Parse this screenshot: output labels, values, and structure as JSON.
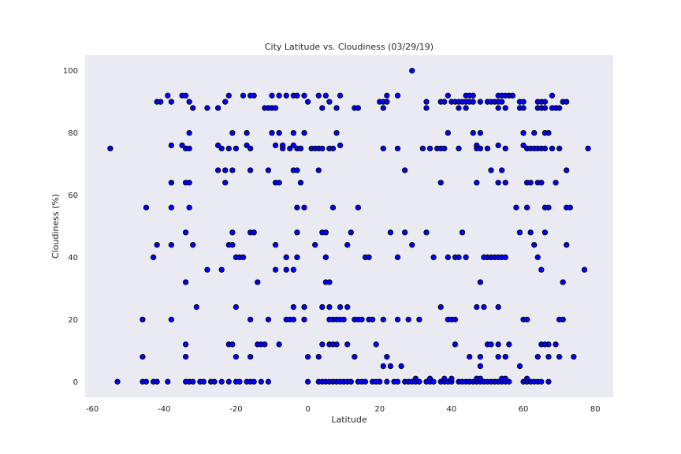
{
  "chart_data": {
    "type": "scatter",
    "title": "City Latitude vs. Cloudiness (03/29/19)",
    "xlabel": "Latitude",
    "ylabel": "Cloudiness (%)",
    "xlim": [
      -62,
      85
    ],
    "ylim": [
      -5,
      105
    ],
    "xticks": [
      -60,
      -40,
      -20,
      0,
      20,
      40,
      60,
      80
    ],
    "yticks": [
      0,
      20,
      40,
      60,
      80,
      100
    ],
    "grid": false,
    "background": "#eaeaf2",
    "marker_color": "#0000ff",
    "marker_edge": "#000000",
    "points": [
      [
        -55,
        75
      ],
      [
        -53,
        0
      ],
      [
        -46,
        20
      ],
      [
        -45,
        56
      ],
      [
        -46,
        8
      ],
      [
        -46,
        0
      ],
      [
        -45,
        0
      ],
      [
        -43,
        0
      ],
      [
        -42,
        0
      ],
      [
        -43,
        40
      ],
      [
        -42,
        44
      ],
      [
        -42,
        90
      ],
      [
        -41,
        90
      ],
      [
        -39,
        92
      ],
      [
        -38,
        90
      ],
      [
        -38,
        76
      ],
      [
        -38,
        64
      ],
      [
        -38,
        56
      ],
      [
        -38,
        44
      ],
      [
        -38,
        20
      ],
      [
        -39,
        0
      ],
      [
        -35,
        92
      ],
      [
        -34,
        92
      ],
      [
        -35,
        76
      ],
      [
        -34,
        75
      ],
      [
        -33,
        75
      ],
      [
        -33,
        80
      ],
      [
        -34,
        64
      ],
      [
        -33,
        64
      ],
      [
        -33,
        56
      ],
      [
        -34,
        48
      ],
      [
        -32,
        44
      ],
      [
        -34,
        32
      ],
      [
        -31,
        24
      ],
      [
        -34,
        12
      ],
      [
        -34,
        8
      ],
      [
        -34,
        0
      ],
      [
        -33,
        0
      ],
      [
        -32,
        0
      ],
      [
        -30,
        0
      ],
      [
        -29,
        0
      ],
      [
        -27,
        0
      ],
      [
        -33,
        90
      ],
      [
        -32,
        88
      ],
      [
        -28,
        88
      ],
      [
        -28,
        36
      ],
      [
        -25,
        88
      ],
      [
        -23,
        90
      ],
      [
        -22,
        92
      ],
      [
        -25,
        76
      ],
      [
        -24,
        75
      ],
      [
        -22,
        75
      ],
      [
        -25,
        68
      ],
      [
        -23,
        68
      ],
      [
        -21,
        68
      ],
      [
        -23,
        64
      ],
      [
        -21,
        80
      ],
      [
        -20,
        75
      ],
      [
        -24,
        36
      ],
      [
        -21,
        48
      ],
      [
        -22,
        44
      ],
      [
        -21,
        44
      ],
      [
        -20,
        40
      ],
      [
        -19,
        40
      ],
      [
        -22,
        12
      ],
      [
        -21,
        12
      ],
      [
        -20,
        24
      ],
      [
        -20,
        8
      ],
      [
        -26,
        0
      ],
      [
        -24,
        0
      ],
      [
        -22,
        0
      ],
      [
        -20,
        0
      ],
      [
        -19,
        0
      ],
      [
        -18,
        92
      ],
      [
        -16,
        92
      ],
      [
        -15,
        92
      ],
      [
        -17,
        80
      ],
      [
        -17,
        76
      ],
      [
        -16,
        75
      ],
      [
        -16,
        68
      ],
      [
        -18,
        40
      ],
      [
        -16,
        48
      ],
      [
        -15,
        48
      ],
      [
        -14,
        32
      ],
      [
        -14,
        12
      ],
      [
        -13,
        12
      ],
      [
        -12,
        12
      ],
      [
        -16,
        20
      ],
      [
        -16,
        8
      ],
      [
        -17,
        0
      ],
      [
        -16,
        0
      ],
      [
        -15,
        0
      ],
      [
        -13,
        0
      ],
      [
        -11,
        0
      ],
      [
        -12,
        88
      ],
      [
        -11,
        88
      ],
      [
        -10,
        88
      ],
      [
        -9,
        88
      ],
      [
        -10,
        92
      ],
      [
        -8,
        92
      ],
      [
        -6,
        92
      ],
      [
        -4,
        92
      ],
      [
        -3,
        92
      ],
      [
        -10,
        80
      ],
      [
        -8,
        80
      ],
      [
        -9,
        76
      ],
      [
        -7,
        76
      ],
      [
        -7,
        75
      ],
      [
        -11,
        68
      ],
      [
        -9,
        64
      ],
      [
        -8,
        64
      ],
      [
        -9,
        44
      ],
      [
        -6,
        40
      ],
      [
        -3,
        40
      ],
      [
        -9,
        36
      ],
      [
        -6,
        36
      ],
      [
        -4,
        36
      ],
      [
        -11,
        20
      ],
      [
        -6,
        20
      ],
      [
        -5,
        20
      ],
      [
        -4,
        20
      ],
      [
        -8,
        12
      ],
      [
        -4,
        24
      ],
      [
        -3,
        48
      ],
      [
        -5,
        75
      ],
      [
        -3,
        75
      ],
      [
        -4,
        76
      ],
      [
        -2,
        75
      ],
      [
        -3,
        68
      ],
      [
        -4,
        68
      ],
      [
        -2,
        64
      ],
      [
        -3,
        56
      ],
      [
        -4,
        80
      ],
      [
        -1,
        80
      ],
      [
        -2,
        75
      ],
      [
        -1,
        56
      ],
      [
        0,
        90
      ],
      [
        -1,
        92
      ],
      [
        -1,
        24
      ],
      [
        -1,
        20
      ],
      [
        0,
        8
      ],
      [
        0,
        0
      ],
      [
        1,
        75
      ],
      [
        2,
        75
      ],
      [
        3,
        75
      ],
      [
        4,
        75
      ],
      [
        6,
        75
      ],
      [
        7,
        75
      ],
      [
        3,
        92
      ],
      [
        5,
        92
      ],
      [
        6,
        90
      ],
      [
        4,
        88
      ],
      [
        8,
        88
      ],
      [
        9,
        92
      ],
      [
        8,
        80
      ],
      [
        9,
        76
      ],
      [
        3,
        68
      ],
      [
        7,
        56
      ],
      [
        2,
        44
      ],
      [
        4,
        48
      ],
      [
        5,
        48
      ],
      [
        5,
        40
      ],
      [
        5,
        32
      ],
      [
        6,
        32
      ],
      [
        4,
        24
      ],
      [
        6,
        24
      ],
      [
        9,
        24
      ],
      [
        7,
        20
      ],
      [
        6,
        20
      ],
      [
        8,
        20
      ],
      [
        4,
        12
      ],
      [
        6,
        12
      ],
      [
        7,
        12
      ],
      [
        8,
        12
      ],
      [
        3,
        8
      ],
      [
        3,
        0
      ],
      [
        4,
        0
      ],
      [
        5,
        0
      ],
      [
        6,
        0
      ],
      [
        7,
        0
      ],
      [
        8,
        0
      ],
      [
        9,
        0
      ],
      [
        10,
        0
      ],
      [
        11,
        0
      ],
      [
        12,
        0
      ],
      [
        9,
        20
      ],
      [
        10,
        20
      ],
      [
        11,
        24
      ],
      [
        11,
        44
      ],
      [
        11,
        12
      ],
      [
        13,
        88
      ],
      [
        14,
        88
      ],
      [
        12,
        48
      ],
      [
        14,
        56
      ],
      [
        13,
        20
      ],
      [
        14,
        20
      ],
      [
        15,
        20
      ],
      [
        13,
        8
      ],
      [
        14,
        0
      ],
      [
        15,
        0
      ],
      [
        16,
        0
      ],
      [
        16,
        40
      ],
      [
        17,
        40
      ],
      [
        17,
        20
      ],
      [
        18,
        20
      ],
      [
        19,
        12
      ],
      [
        18,
        0
      ],
      [
        19,
        0
      ],
      [
        20,
        90
      ],
      [
        21,
        90
      ],
      [
        22,
        90
      ],
      [
        22,
        92
      ],
      [
        21,
        88
      ],
      [
        25,
        92
      ],
      [
        21,
        75
      ],
      [
        25,
        75
      ],
      [
        23,
        48
      ],
      [
        25,
        40
      ],
      [
        27,
        48
      ],
      [
        27,
        68
      ],
      [
        29,
        44
      ],
      [
        21,
        20
      ],
      [
        25,
        20
      ],
      [
        28,
        20
      ],
      [
        21,
        5
      ],
      [
        22,
        8
      ],
      [
        23,
        5
      ],
      [
        26,
        5
      ],
      [
        20,
        0
      ],
      [
        22,
        0
      ],
      [
        24,
        0
      ],
      [
        25,
        0
      ],
      [
        27,
        0
      ],
      [
        28,
        0
      ],
      [
        29,
        0
      ],
      [
        30,
        0
      ],
      [
        30,
        1
      ],
      [
        31,
        0
      ],
      [
        29,
        100
      ],
      [
        31,
        20
      ],
      [
        32,
        75
      ],
      [
        34,
        75
      ],
      [
        33,
        90
      ],
      [
        33,
        88
      ],
      [
        33,
        48
      ],
      [
        35,
        40
      ],
      [
        33,
        0
      ],
      [
        34,
        0
      ],
      [
        34,
        1
      ],
      [
        35,
        0
      ],
      [
        36,
        75
      ],
      [
        37,
        75
      ],
      [
        38,
        75
      ],
      [
        37,
        90
      ],
      [
        38,
        90
      ],
      [
        39,
        92
      ],
      [
        37,
        64
      ],
      [
        39,
        80
      ],
      [
        39,
        40
      ],
      [
        39,
        20
      ],
      [
        40,
        20
      ],
      [
        37,
        24
      ],
      [
        37,
        0
      ],
      [
        38,
        0
      ],
      [
        39,
        0
      ],
      [
        40,
        0
      ],
      [
        40,
        1
      ],
      [
        38,
        1
      ],
      [
        40,
        90
      ],
      [
        41,
        90
      ],
      [
        42,
        90
      ],
      [
        43,
        90
      ],
      [
        44,
        90
      ],
      [
        45,
        90
      ],
      [
        46,
        90
      ],
      [
        42,
        88
      ],
      [
        44,
        92
      ],
      [
        45,
        92
      ],
      [
        46,
        92
      ],
      [
        44,
        88
      ],
      [
        42,
        75
      ],
      [
        41,
        40
      ],
      [
        42,
        40
      ],
      [
        44,
        40
      ],
      [
        43,
        48
      ],
      [
        41,
        20
      ],
      [
        41,
        12
      ],
      [
        42,
        0
      ],
      [
        43,
        0
      ],
      [
        44,
        0
      ],
      [
        45,
        0
      ],
      [
        45,
        8
      ],
      [
        46,
        80
      ],
      [
        47,
        76
      ],
      [
        47,
        75
      ],
      [
        48,
        80
      ],
      [
        48,
        75
      ],
      [
        50,
        75
      ],
      [
        47,
        64
      ],
      [
        48,
        32
      ],
      [
        47,
        24
      ],
      [
        49,
        24
      ],
      [
        48,
        5
      ],
      [
        48,
        8
      ],
      [
        46,
        0
      ],
      [
        47,
        0
      ],
      [
        48,
        0
      ],
      [
        49,
        0
      ],
      [
        47,
        1
      ],
      [
        48,
        1
      ],
      [
        48,
        90
      ],
      [
        50,
        90
      ],
      [
        51,
        90
      ],
      [
        52,
        90
      ],
      [
        53,
        90
      ],
      [
        54,
        90
      ],
      [
        53,
        92
      ],
      [
        54,
        92
      ],
      [
        55,
        92
      ],
      [
        56,
        92
      ],
      [
        53,
        88
      ],
      [
        55,
        88
      ],
      [
        51,
        68
      ],
      [
        53,
        76
      ],
      [
        54,
        68
      ],
      [
        55,
        75
      ],
      [
        53,
        64
      ],
      [
        55,
        64
      ],
      [
        50,
        40
      ],
      [
        51,
        40
      ],
      [
        52,
        40
      ],
      [
        53,
        40
      ],
      [
        54,
        40
      ],
      [
        55,
        40
      ],
      [
        49,
        40
      ],
      [
        51,
        12
      ],
      [
        50,
        12
      ],
      [
        53,
        12
      ],
      [
        53,
        24
      ],
      [
        53,
        8
      ],
      [
        55,
        8
      ],
      [
        56,
        12
      ],
      [
        50,
        0
      ],
      [
        51,
        0
      ],
      [
        52,
        0
      ],
      [
        53,
        0
      ],
      [
        54,
        0
      ],
      [
        55,
        0
      ],
      [
        56,
        0
      ],
      [
        54,
        1
      ],
      [
        55,
        1
      ],
      [
        57,
        92
      ],
      [
        58,
        56
      ],
      [
        59,
        48
      ],
      [
        59,
        88
      ],
      [
        60,
        88
      ],
      [
        59,
        90
      ],
      [
        60,
        90
      ],
      [
        60,
        76
      ],
      [
        60,
        80
      ],
      [
        61,
        75
      ],
      [
        62,
        75
      ],
      [
        61,
        64
      ],
      [
        62,
        64
      ],
      [
        61,
        56
      ],
      [
        62,
        48
      ],
      [
        60,
        20
      ],
      [
        61,
        20
      ],
      [
        59,
        5
      ],
      [
        60,
        0
      ],
      [
        61,
        0
      ],
      [
        61,
        1
      ],
      [
        62,
        0
      ],
      [
        63,
        0
      ],
      [
        64,
        0
      ],
      [
        65,
        0
      ],
      [
        67,
        0
      ],
      [
        63,
        75
      ],
      [
        64,
        75
      ],
      [
        65,
        75
      ],
      [
        66,
        75
      ],
      [
        63,
        80
      ],
      [
        64,
        64
      ],
      [
        65,
        64
      ],
      [
        63,
        44
      ],
      [
        64,
        40
      ],
      [
        65,
        36
      ],
      [
        64,
        88
      ],
      [
        65,
        88
      ],
      [
        66,
        88
      ],
      [
        64,
        90
      ],
      [
        65,
        90
      ],
      [
        66,
        90
      ],
      [
        66,
        80
      ],
      [
        67,
        80
      ],
      [
        66,
        56
      ],
      [
        67,
        56
      ],
      [
        66,
        48
      ],
      [
        65,
        12
      ],
      [
        66,
        12
      ],
      [
        67,
        12
      ],
      [
        64,
        8
      ],
      [
        67,
        8
      ],
      [
        68,
        92
      ],
      [
        68,
        88
      ],
      [
        69,
        88
      ],
      [
        70,
        88
      ],
      [
        68,
        75
      ],
      [
        70,
        75
      ],
      [
        69,
        64
      ],
      [
        69,
        12
      ],
      [
        70,
        8
      ],
      [
        70,
        20
      ],
      [
        71,
        20
      ],
      [
        71,
        32
      ],
      [
        71,
        90
      ],
      [
        72,
        90
      ],
      [
        72,
        68
      ],
      [
        72,
        56
      ],
      [
        73,
        56
      ],
      [
        72,
        44
      ],
      [
        74,
        8
      ],
      [
        77,
        36
      ],
      [
        78,
        75
      ]
    ]
  }
}
